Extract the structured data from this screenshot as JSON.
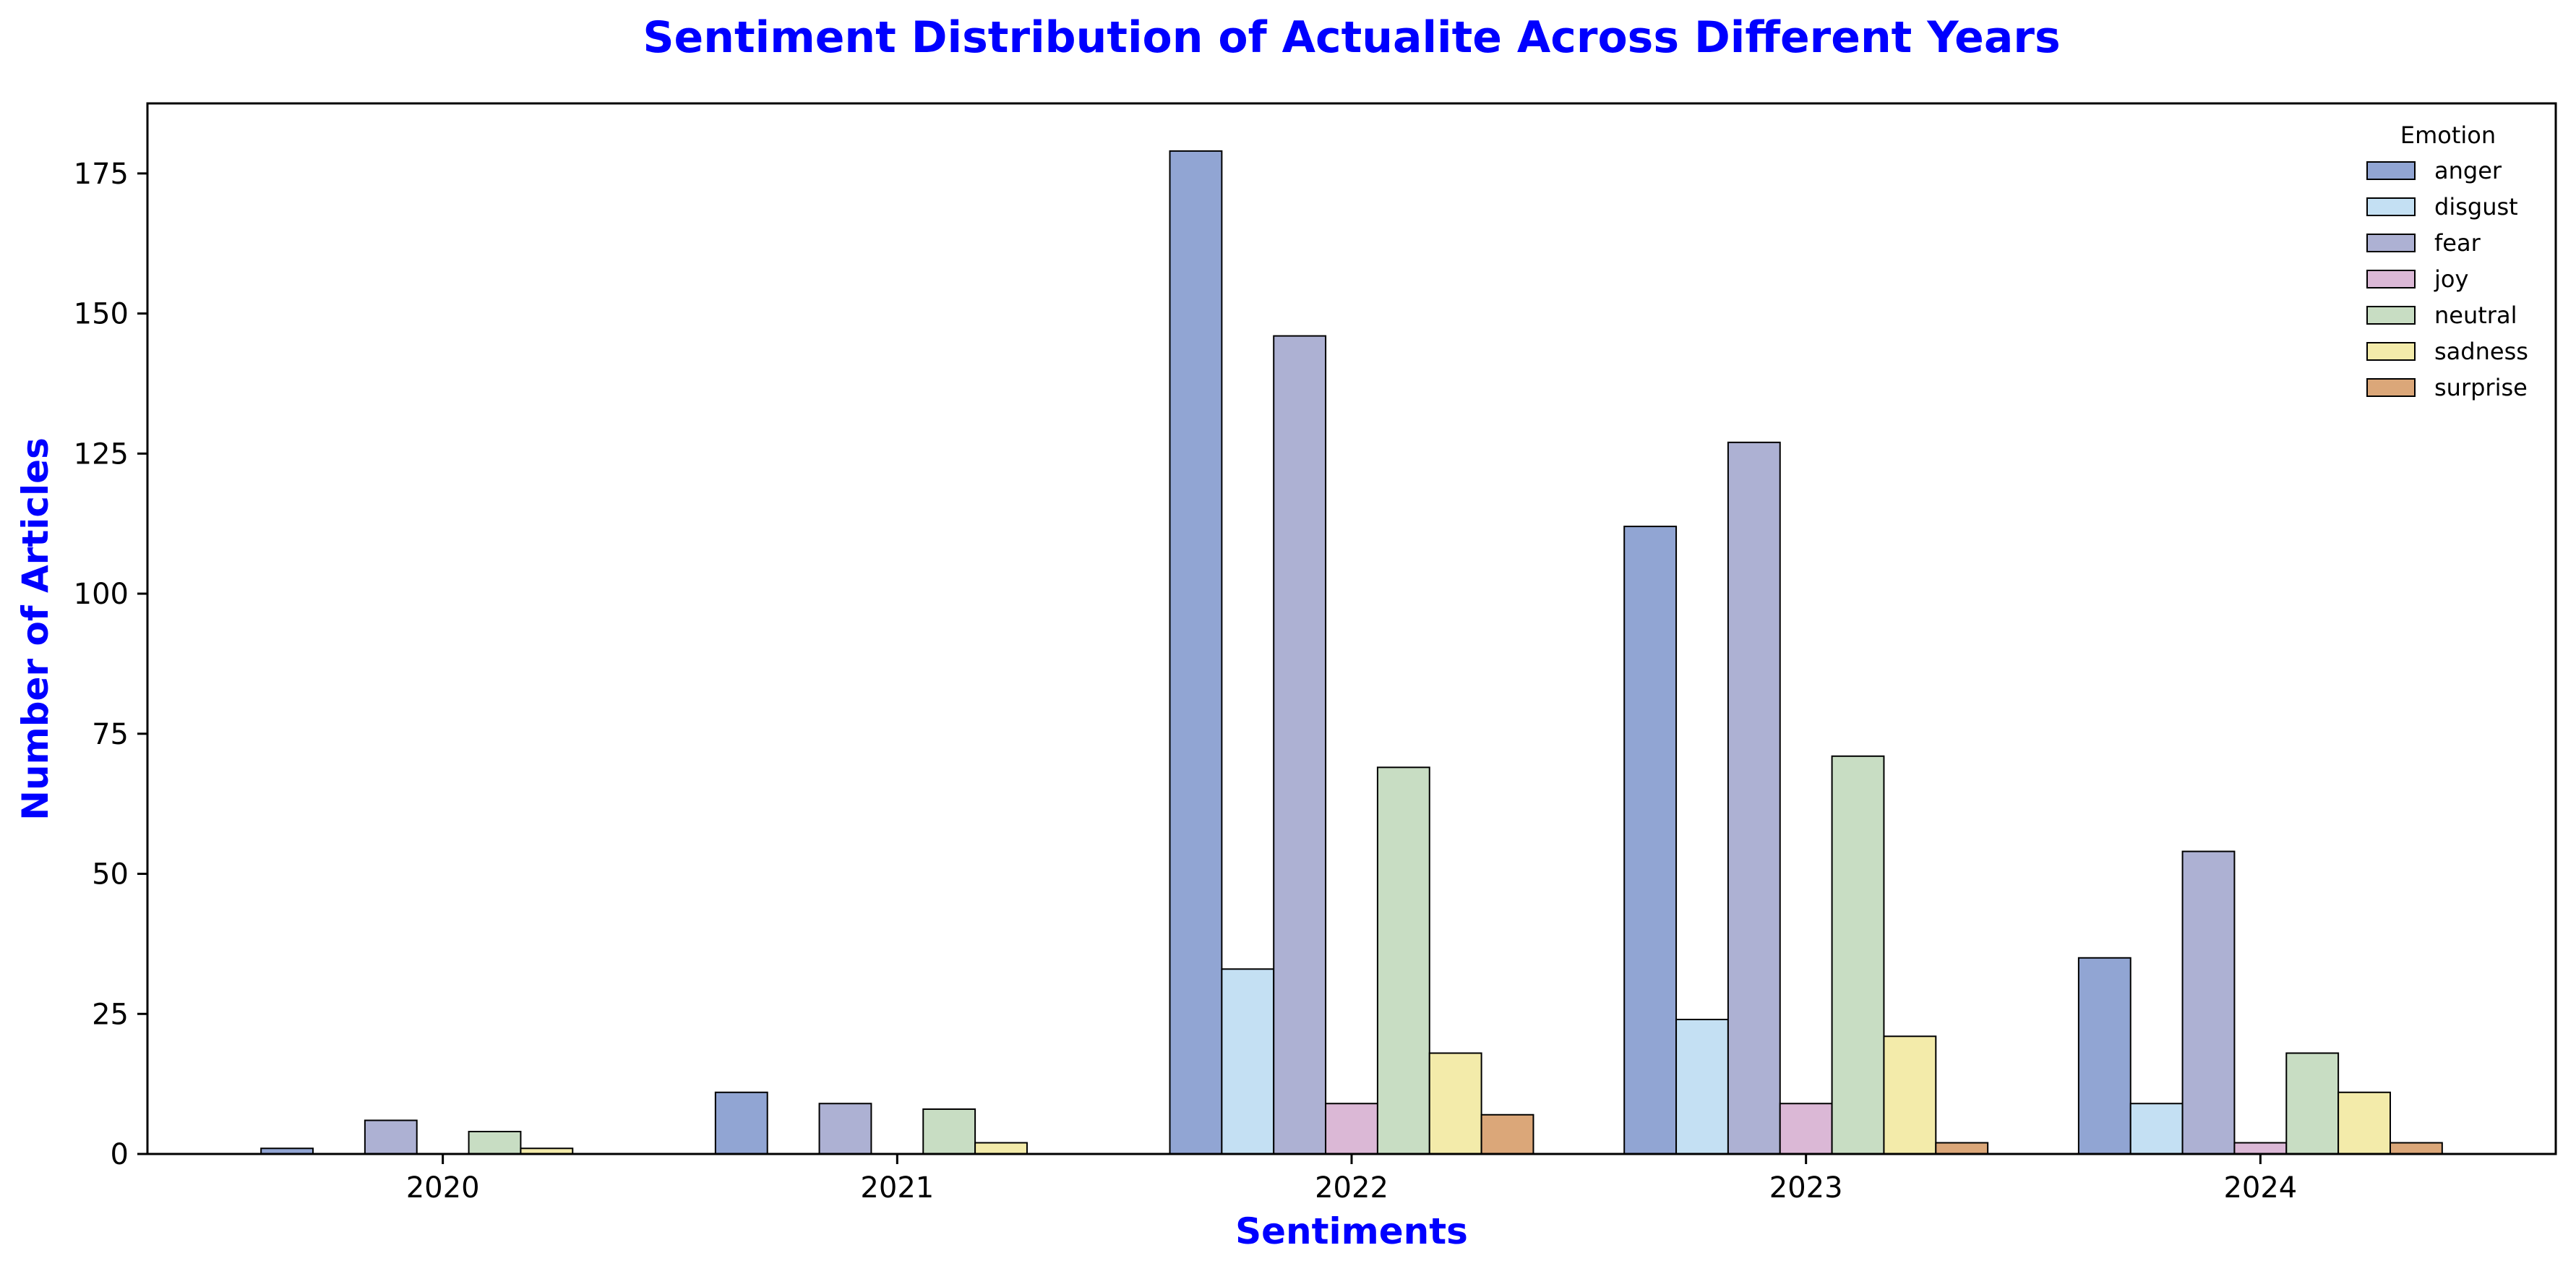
{
  "chart_data": {
    "type": "bar",
    "title": "Sentiment Distribution of Actualite Across Different Years",
    "xlabel": "Sentiments",
    "ylabel": "Number of Articles",
    "categories": [
      "2020",
      "2021",
      "2022",
      "2023",
      "2024"
    ],
    "ylim": [
      0,
      187.5
    ],
    "yticks": [
      0,
      25,
      50,
      75,
      100,
      125,
      150,
      175
    ],
    "grid": false,
    "legend": {
      "title": "Emotion",
      "placement": "top-right"
    },
    "series": [
      {
        "name": "anger",
        "color": "#91a5d3",
        "values": [
          1,
          11,
          179,
          112,
          35
        ]
      },
      {
        "name": "disgust",
        "color": "#c4e0f3",
        "values": [
          0,
          0,
          33,
          24,
          9
        ]
      },
      {
        "name": "fear",
        "color": "#adb1d3",
        "values": [
          6,
          9,
          146,
          127,
          54
        ]
      },
      {
        "name": "joy",
        "color": "#dbb8d6",
        "values": [
          0,
          0,
          9,
          9,
          2
        ]
      },
      {
        "name": "neutral",
        "color": "#c8ddc3",
        "values": [
          4,
          8,
          69,
          71,
          18
        ]
      },
      {
        "name": "sadness",
        "color": "#f3ebaa",
        "values": [
          1,
          2,
          18,
          21,
          11
        ]
      },
      {
        "name": "surprise",
        "color": "#dba779",
        "values": [
          0,
          0,
          7,
          2,
          2
        ]
      }
    ],
    "title_color": "#0000ff",
    "label_color": "#0000ff"
  }
}
